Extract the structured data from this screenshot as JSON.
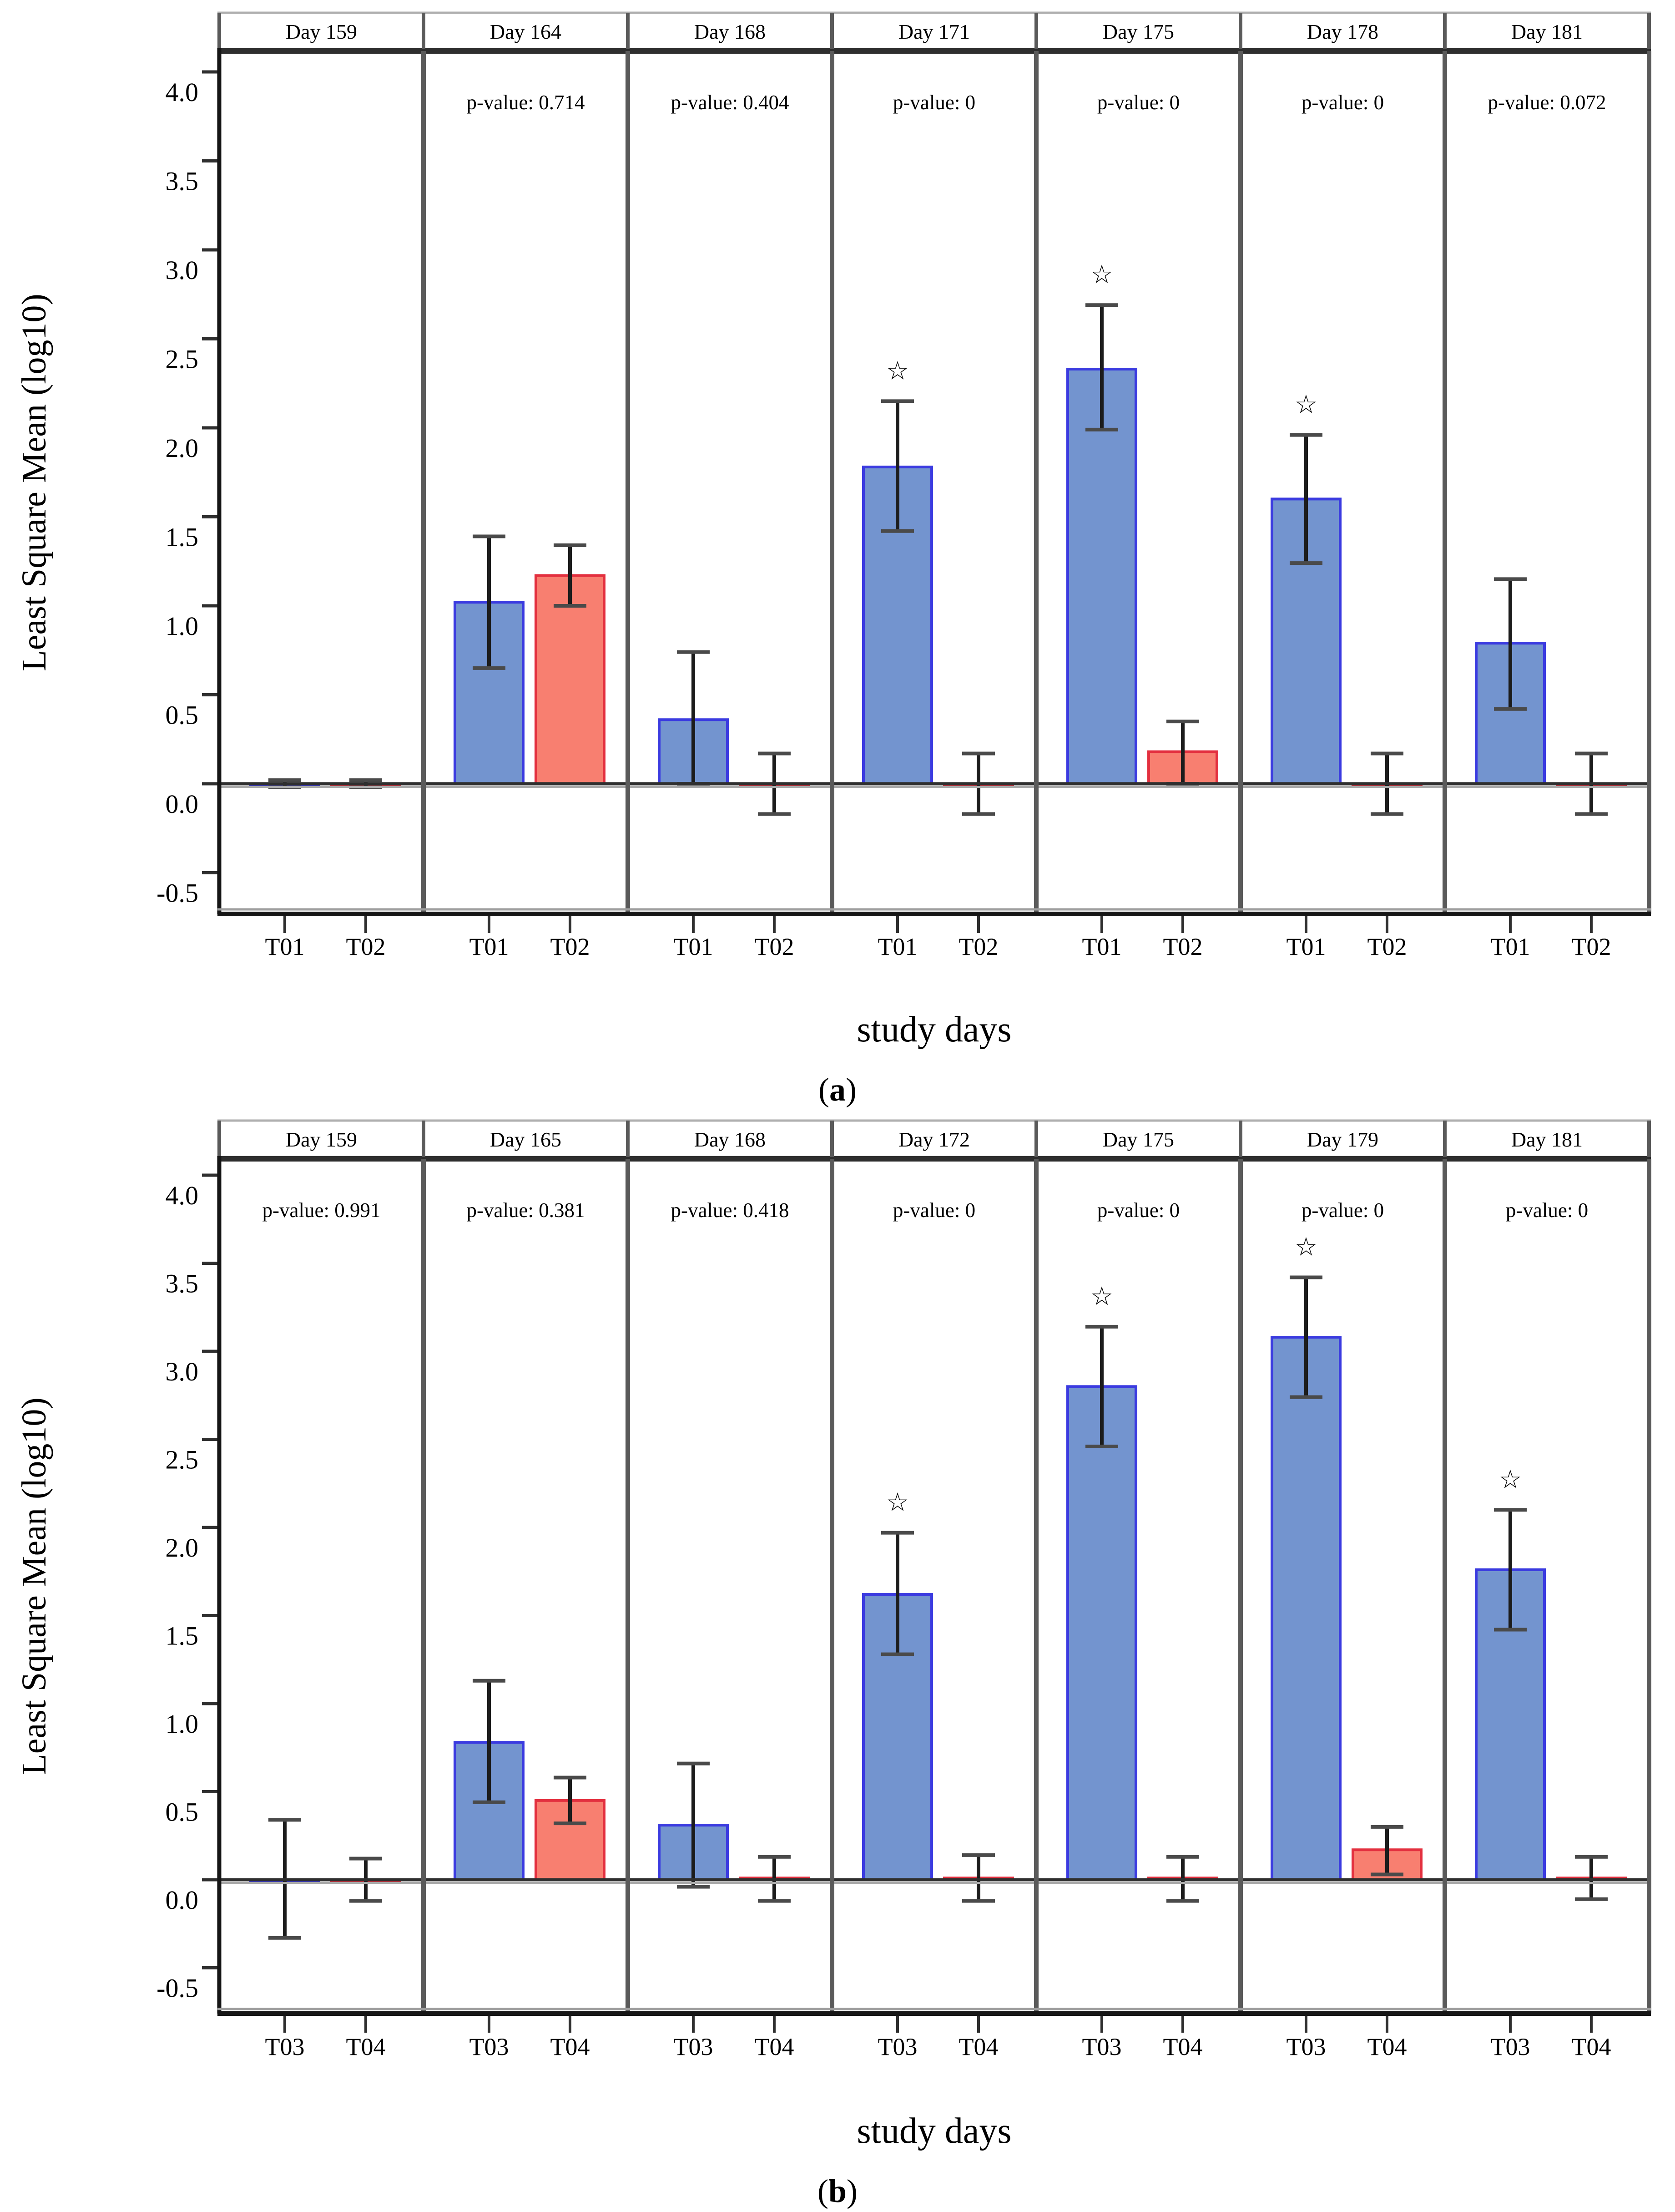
{
  "figure_title": "",
  "sig_marker": "☆",
  "colors": {
    "bar1_fill": "#7394CF",
    "bar1_stroke": "#3B3BE0",
    "bar2_fill": "#F87F70",
    "bar2_stroke": "#E3303F",
    "error_line": "#1C1C1C",
    "error_cap": "#4A4A4A",
    "star": "#4040D8",
    "zero_line": "#2F2F2F",
    "zero_shadow": "#ABABAB",
    "facet_divider": "#5A5A5A",
    "spine": "#161616",
    "top_line": "#2E2E2E",
    "header_line": "#AFAFAF",
    "bottom_gray": "#9E9E9E",
    "tick": "#2F2F2F",
    "text": "#000000"
  },
  "chart_data": [
    {
      "type": "bar",
      "panel": "a",
      "caption": "(a)",
      "xlabel": "study days",
      "ylabel": "Least Square Mean (log10)",
      "ylim": [
        -0.75,
        4.15
      ],
      "yticks": [
        -0.5,
        0.0,
        0.5,
        1.0,
        1.5,
        2.0,
        2.5,
        3.0,
        3.5,
        4.0
      ],
      "grid": false,
      "legend_position": "none",
      "categories": [
        "Day 159",
        "Day 164",
        "Day 168",
        "Day 171",
        "Day 175",
        "Day 178",
        "Day 181"
      ],
      "p_value_prefix": "p-value: ",
      "p_values": [
        "",
        "0.714",
        "0.404",
        "0",
        "0",
        "0",
        "0.072"
      ],
      "series": [
        {
          "name": "T01",
          "values": [
            0.0,
            1.02,
            0.36,
            1.78,
            2.33,
            1.6,
            0.79
          ],
          "err_lo": [
            -0.02,
            0.65,
            0.0,
            1.42,
            1.99,
            1.24,
            0.42
          ],
          "err_hi": [
            0.02,
            1.39,
            0.74,
            2.15,
            2.69,
            1.96,
            1.15
          ],
          "sig": [
            false,
            false,
            false,
            true,
            true,
            true,
            false
          ]
        },
        {
          "name": "T02",
          "values": [
            0.0,
            1.17,
            0.0,
            0.0,
            0.18,
            0.0,
            0.0
          ],
          "err_lo": [
            -0.02,
            1.0,
            -0.17,
            -0.17,
            0.0,
            -0.17,
            -0.17
          ],
          "err_hi": [
            0.02,
            1.34,
            0.17,
            0.17,
            0.35,
            0.17,
            0.17
          ],
          "sig": [
            false,
            false,
            false,
            false,
            false,
            false,
            false
          ]
        }
      ]
    },
    {
      "type": "bar",
      "panel": "b",
      "caption": "(b)",
      "xlabel": "study days",
      "ylabel": "Least Square Mean (log10)",
      "ylim": [
        -0.76,
        4.11
      ],
      "yticks": [
        -0.5,
        0.0,
        0.5,
        1.0,
        1.5,
        2.0,
        2.5,
        3.0,
        3.5,
        4.0
      ],
      "grid": false,
      "legend_position": "none",
      "categories": [
        "Day 159",
        "Day 165",
        "Day 168",
        "Day 172",
        "Day 175",
        "Day 179",
        "Day 181"
      ],
      "p_value_prefix": "p-value: ",
      "p_values": [
        "0.991",
        "0.381",
        "0.418",
        "0",
        "0",
        "0",
        "0"
      ],
      "series": [
        {
          "name": "T03",
          "values": [
            0.0,
            0.78,
            0.31,
            1.62,
            2.8,
            3.08,
            1.76
          ],
          "err_lo": [
            -0.33,
            0.44,
            -0.04,
            1.28,
            2.46,
            2.74,
            1.42
          ],
          "err_hi": [
            0.34,
            1.13,
            0.66,
            1.97,
            3.14,
            3.42,
            2.1
          ],
          "sig": [
            false,
            false,
            false,
            true,
            true,
            true,
            true
          ]
        },
        {
          "name": "T04",
          "values": [
            0.0,
            0.45,
            0.01,
            0.01,
            0.01,
            0.17,
            0.01
          ],
          "err_lo": [
            -0.12,
            0.32,
            -0.12,
            -0.12,
            -0.12,
            0.03,
            -0.11
          ],
          "err_hi": [
            0.12,
            0.58,
            0.13,
            0.14,
            0.13,
            0.3,
            0.13
          ],
          "sig": [
            false,
            false,
            false,
            false,
            false,
            false,
            false
          ]
        }
      ]
    }
  ]
}
